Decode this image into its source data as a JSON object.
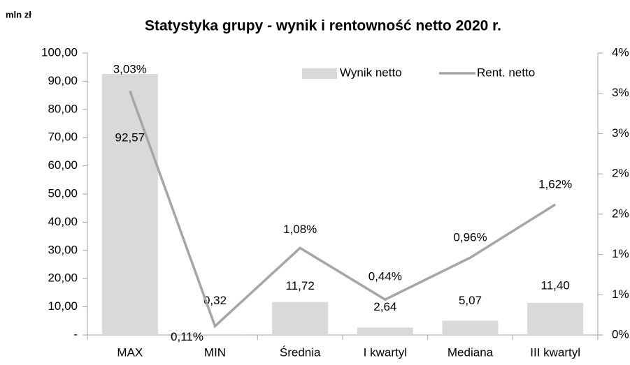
{
  "chart_data": {
    "type": "bar-line",
    "title": "Statystyka grupy  - wynik i rentowność netto 2020 r.",
    "y_axis_label": "mln zł",
    "categories": [
      "MAX",
      "MIN",
      "Średnia",
      "I kwartyl",
      "Mediana",
      "III kwartyl"
    ],
    "series": [
      {
        "name": "Wynik netto",
        "type": "bar",
        "color": "#d9d9d9",
        "values": [
          92.57,
          0.32,
          11.72,
          2.64,
          5.07,
          11.4
        ],
        "value_labels": [
          "92,57",
          "0,32",
          "11,72",
          "2,64",
          "5,07",
          "11,40"
        ]
      },
      {
        "name": "Rent. netto",
        "type": "line",
        "axis": "y2",
        "color": "#a6a6a6",
        "values": [
          3.03,
          0.11,
          1.08,
          0.44,
          0.96,
          1.62
        ],
        "value_labels": [
          "3,03%",
          "0,11%",
          "1,08%",
          "0,44%",
          "0,96%",
          "1,62%"
        ]
      }
    ],
    "ylim": [
      0,
      100
    ],
    "yticks": [
      {
        "value": 0,
        "label": "-"
      },
      {
        "value": 10,
        "label": "10,00"
      },
      {
        "value": 20,
        "label": "20,00"
      },
      {
        "value": 30,
        "label": "30,00"
      },
      {
        "value": 40,
        "label": "40,00"
      },
      {
        "value": 50,
        "label": "50,00"
      },
      {
        "value": 60,
        "label": "60,00"
      },
      {
        "value": 70,
        "label": "70,00"
      },
      {
        "value": 80,
        "label": "80,00"
      },
      {
        "value": 90,
        "label": "90,00"
      },
      {
        "value": 100,
        "label": "100,00"
      }
    ],
    "y2lim": [
      0,
      3.5
    ],
    "y2ticks": [
      {
        "value": 0,
        "label": "0%"
      },
      {
        "value": 0.5,
        "label": "1%"
      },
      {
        "value": 1,
        "label": "1%"
      },
      {
        "value": 1.5,
        "label": "2%"
      },
      {
        "value": 2,
        "label": "2%"
      },
      {
        "value": 2.5,
        "label": "3%"
      },
      {
        "value": 3,
        "label": "3%"
      },
      {
        "value": 3.5,
        "label": "4%"
      }
    ],
    "legend": "top-right"
  }
}
